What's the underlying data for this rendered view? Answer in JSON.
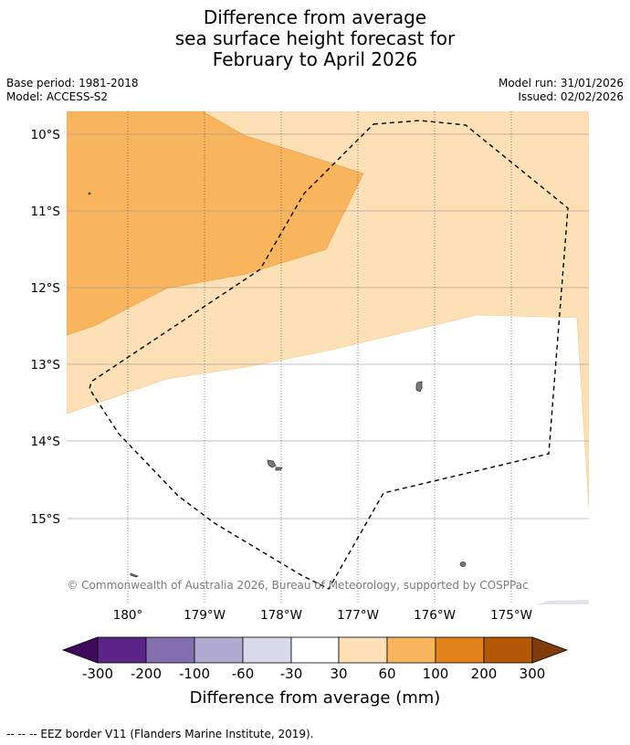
{
  "title": {
    "line1": "Difference from average",
    "line2": "sea surface height forecast for",
    "line3": "February to April 2026"
  },
  "meta": {
    "base_period": "Base period: 1981-2018",
    "model": "Model: ACCESS-S2",
    "model_run": "Model run: 31/01/2026",
    "issued": "Issued: 02/02/2026"
  },
  "map": {
    "lat_labels": [
      "10°S",
      "11°S",
      "12°S",
      "13°S",
      "14°S",
      "15°S"
    ],
    "lon_labels": [
      "180°",
      "179°W",
      "178°W",
      "177°W",
      "176°W",
      "175°W"
    ],
    "copyright": "© Commonwealth of Australia 2026, Bureau of Meteorology, supported by COSPPac"
  },
  "colorbar": {
    "ticks": [
      "-300",
      "-200",
      "-100",
      "-60",
      "-30",
      "30",
      "60",
      "100",
      "200",
      "300"
    ],
    "colors": [
      "#3f0a5e",
      "#5a2587",
      "#8170ad",
      "#b0a9d0",
      "#d9d9ec",
      "#ffffff",
      "#fde0b5",
      "#f9b45e",
      "#e1821a",
      "#b35807",
      "#7f3b08"
    ],
    "label": "Difference from average (mm)"
  },
  "legend": {
    "eez_line": "--  --  -- EEZ border V11 (Flanders Marine Institute, 2019)."
  }
}
